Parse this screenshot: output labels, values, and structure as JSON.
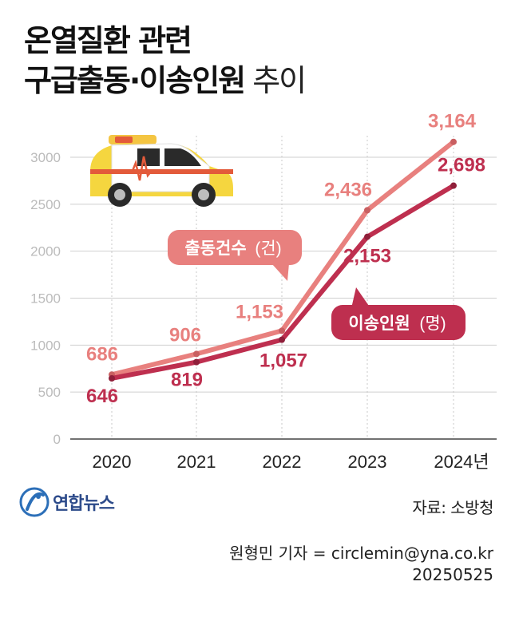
{
  "title": {
    "line1": "온열질환 관련",
    "line2_bold": "구급출동·이송인원",
    "line2_suffix": " 추이"
  },
  "chart_data": {
    "type": "line",
    "categories": [
      "2020",
      "2021",
      "2022",
      "2023",
      "2024년"
    ],
    "x": [
      2020,
      2021,
      2022,
      2023,
      2024
    ],
    "ylim": [
      0,
      3000
    ],
    "yticks": [
      "0",
      "500",
      "1000",
      "1500",
      "2000",
      "2500",
      "3000"
    ],
    "grid": true,
    "series": [
      {
        "name": "출동건수",
        "unit": "(건)",
        "color": "#e8807e",
        "values": [
          686,
          906,
          1153,
          2436,
          3164
        ],
        "labels": [
          "686",
          "906",
          "1,153",
          "2,436",
          "3,164"
        ]
      },
      {
        "name": "이송인원",
        "unit": "(명)",
        "color": "#be2f4f",
        "values": [
          646,
          819,
          1057,
          2153,
          2698
        ],
        "labels": [
          "646",
          "819",
          "1,057",
          "2,153",
          "2,698"
        ]
      }
    ]
  },
  "footer": {
    "logo_text": "연합뉴스",
    "source": "자료: 소방청",
    "reporter": "원형민 기자 = circlemin@yna.co.kr",
    "date": "20250525"
  }
}
